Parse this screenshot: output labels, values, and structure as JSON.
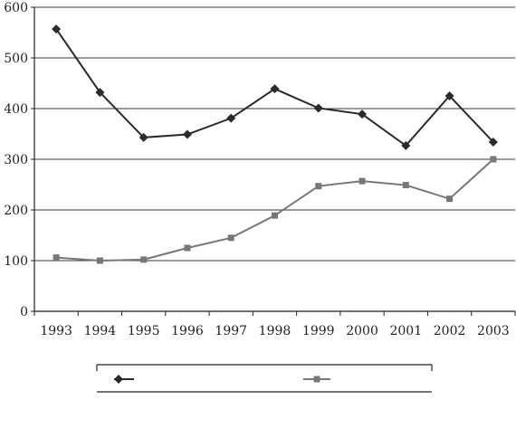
{
  "chart_data": {
    "type": "line",
    "categories": [
      "1993",
      "1994",
      "1995",
      "1996",
      "1997",
      "1998",
      "1999",
      "2000",
      "2001",
      "2002",
      "2003"
    ],
    "series": [
      {
        "marker": "diamond",
        "color": "#2a2a2a",
        "values": [
          557,
          432,
          343,
          349,
          381,
          439,
          401,
          389,
          327,
          425,
          334
        ]
      },
      {
        "marker": "square",
        "color": "#777777",
        "values": [
          106,
          100,
          102,
          125,
          145,
          189,
          247,
          257,
          249,
          222,
          300
        ]
      }
    ],
    "ylim": [
      0,
      600
    ],
    "yticks": [
      0,
      100,
      200,
      300,
      400,
      500,
      600
    ],
    "grid": true,
    "legend_position": "bottom"
  }
}
